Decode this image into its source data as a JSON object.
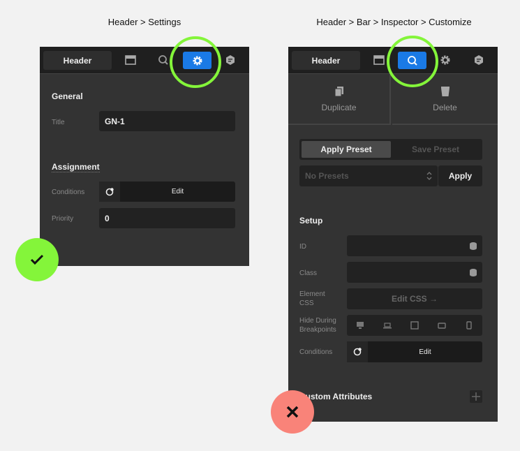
{
  "left": {
    "caption": "Header > Settings",
    "header_label": "Header",
    "general": "General",
    "title_label": "Title",
    "title_value": "GN-1",
    "assignment": "Assignment",
    "conditions_label": "Conditions",
    "edit": "Edit",
    "priority_label": "Priority",
    "priority_value": "0",
    "result": "check"
  },
  "right": {
    "caption": "Header > Bar > Inspector > Customize",
    "header_label": "Header",
    "duplicate": "Duplicate",
    "delete": "Delete",
    "apply_preset": "Apply Preset",
    "save_preset": "Save Preset",
    "presets_select": "No Presets",
    "apply": "Apply",
    "setup": "Setup",
    "id_label": "ID",
    "class_label": "Class",
    "element_css_label": "Element CSS",
    "edit_css": "Edit CSS →",
    "hide_label": "Hide During Breakpoints",
    "conditions_label": "Conditions",
    "edit": "Edit",
    "custom_attributes": "Custom Attributes",
    "result": "cross"
  },
  "colors": {
    "accent": "#1a7ae6",
    "highlight": "#84f53a",
    "success": "#84f53a",
    "error": "#f98379"
  }
}
